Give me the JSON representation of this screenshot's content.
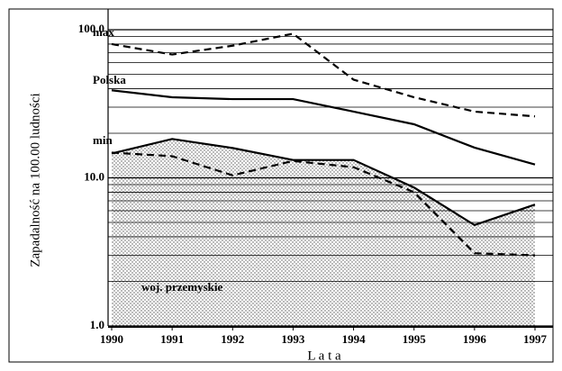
{
  "chart_data": {
    "type": "line",
    "y_label": "Zapadalność na 100.00 ludności",
    "x_label": "L a t a",
    "categories": [
      "1990",
      "1991",
      "1992",
      "1993",
      "1994",
      "1995",
      "1996",
      "1997"
    ],
    "ylim": [
      1,
      100
    ],
    "log_scale": true,
    "yticks": [
      {
        "value": 1,
        "label": "1.0"
      },
      {
        "value": 10,
        "label": "10.0"
      },
      {
        "value": 100,
        "label": "100.0"
      }
    ],
    "minor_ticks": [
      2,
      3,
      4,
      5,
      6,
      7,
      8,
      9,
      20,
      30,
      40,
      50,
      60,
      70,
      80,
      90
    ],
    "grid": true,
    "series": [
      {
        "name": "max",
        "color": "#000000",
        "style": "dashed",
        "values": [
          80,
          68,
          78,
          94,
          46,
          35,
          28,
          26
        ]
      },
      {
        "name": "Polska",
        "color": "#000000",
        "style": "solid",
        "values": [
          39,
          35,
          34,
          34,
          28,
          23,
          16,
          12.3
        ]
      },
      {
        "name": "min",
        "color": "#000000",
        "style": "solid",
        "area": true,
        "values": [
          14.6,
          18.3,
          15.9,
          13.2,
          13.2,
          8.6,
          4.8,
          6.6
        ]
      },
      {
        "name": "woj. przemyskie",
        "color": "#000000",
        "style": "dashed",
        "values": [
          14.8,
          14,
          10.4,
          13,
          11.8,
          8,
          3.1,
          3.0
        ]
      }
    ]
  }
}
